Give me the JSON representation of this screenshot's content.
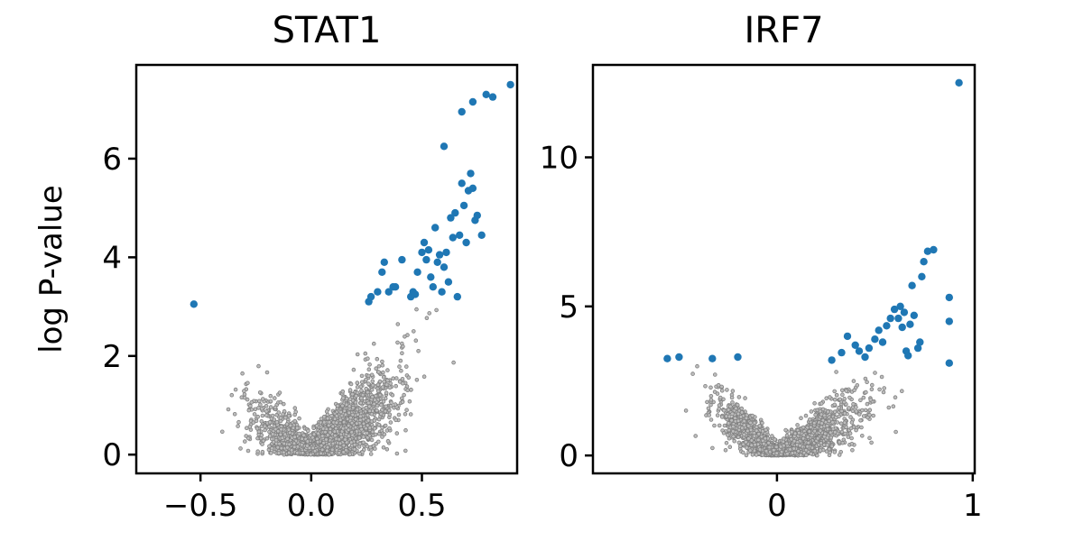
{
  "chart_data": [
    {
      "type": "scatter",
      "title": "STAT1",
      "xlabel": "",
      "ylabel": "log P-value",
      "xlim": [
        -0.79,
        0.93
      ],
      "ylim": [
        -0.38,
        7.9
      ],
      "xticks": [
        -0.5,
        0.0,
        0.5
      ],
      "xtick_labels": [
        "−0.5",
        "0.0",
        "0.5"
      ],
      "yticks": [
        0,
        2,
        4,
        6
      ],
      "ytick_labels": [
        "0",
        "2",
        "4",
        "6"
      ],
      "grid": false,
      "colors": {
        "background": "#808080",
        "significant": "#1f77b4"
      },
      "background_points": "dense grey cloud of non-significant genes, V-shaped: near 0 at x=0 rising to about 3 at x≈±0.6",
      "significant_points": [
        [
          -0.53,
          3.05
        ],
        [
          0.26,
          3.1
        ],
        [
          0.27,
          3.2
        ],
        [
          0.3,
          3.3
        ],
        [
          0.32,
          3.7
        ],
        [
          0.33,
          3.9
        ],
        [
          0.35,
          3.3
        ],
        [
          0.37,
          3.4
        ],
        [
          0.38,
          3.4
        ],
        [
          0.41,
          3.95
        ],
        [
          0.45,
          3.2
        ],
        [
          0.46,
          3.3
        ],
        [
          0.47,
          3.25
        ],
        [
          0.48,
          3.7
        ],
        [
          0.5,
          4.1
        ],
        [
          0.51,
          4.3
        ],
        [
          0.52,
          3.95
        ],
        [
          0.53,
          4.15
        ],
        [
          0.54,
          3.6
        ],
        [
          0.55,
          3.4
        ],
        [
          0.56,
          4.6
        ],
        [
          0.57,
          3.9
        ],
        [
          0.58,
          4.05
        ],
        [
          0.59,
          3.3
        ],
        [
          0.6,
          3.8
        ],
        [
          0.6,
          6.25
        ],
        [
          0.61,
          4.1
        ],
        [
          0.62,
          3.5
        ],
        [
          0.63,
          4.8
        ],
        [
          0.64,
          4.4
        ],
        [
          0.65,
          4.9
        ],
        [
          0.66,
          3.2
        ],
        [
          0.67,
          4.45
        ],
        [
          0.68,
          5.5
        ],
        [
          0.69,
          5.05
        ],
        [
          0.7,
          4.3
        ],
        [
          0.71,
          5.35
        ],
        [
          0.72,
          5.7
        ],
        [
          0.73,
          5.4
        ],
        [
          0.74,
          4.75
        ],
        [
          0.75,
          4.85
        ],
        [
          0.77,
          4.45
        ],
        [
          0.73,
          7.15
        ],
        [
          0.68,
          6.95
        ],
        [
          0.79,
          7.3
        ],
        [
          0.82,
          7.25
        ],
        [
          0.9,
          7.5
        ]
      ]
    },
    {
      "type": "scatter",
      "title": "IRF7",
      "xlabel": "",
      "ylabel": "",
      "xlim": [
        -0.94,
        1.01
      ],
      "ylim": [
        -0.6,
        13.1
      ],
      "xticks": [
        0,
        1
      ],
      "xtick_labels": [
        "0",
        "1"
      ],
      "yticks": [
        0,
        5,
        10
      ],
      "ytick_labels": [
        "0",
        "5",
        "10"
      ],
      "grid": false,
      "colors": {
        "background": "#808080",
        "significant": "#1f77b4"
      },
      "background_points": "dense grey cloud of non-significant genes, V-shaped: near 0 at x=0 rising to about 3 on both sides",
      "significant_points": [
        [
          -0.56,
          3.25
        ],
        [
          -0.5,
          3.3
        ],
        [
          -0.33,
          3.25
        ],
        [
          -0.2,
          3.3
        ],
        [
          0.28,
          3.2
        ],
        [
          0.33,
          3.45
        ],
        [
          0.36,
          4.0
        ],
        [
          0.4,
          3.7
        ],
        [
          0.42,
          3.5
        ],
        [
          0.45,
          3.3
        ],
        [
          0.47,
          3.6
        ],
        [
          0.5,
          3.9
        ],
        [
          0.52,
          4.2
        ],
        [
          0.54,
          3.8
        ],
        [
          0.56,
          4.35
        ],
        [
          0.58,
          4.6
        ],
        [
          0.6,
          4.9
        ],
        [
          0.62,
          4.6
        ],
        [
          0.63,
          5.0
        ],
        [
          0.64,
          4.3
        ],
        [
          0.65,
          4.8
        ],
        [
          0.66,
          3.5
        ],
        [
          0.67,
          3.35
        ],
        [
          0.68,
          4.4
        ],
        [
          0.69,
          5.7
        ],
        [
          0.7,
          4.7
        ],
        [
          0.72,
          3.6
        ],
        [
          0.73,
          3.8
        ],
        [
          0.74,
          6.0
        ],
        [
          0.75,
          6.5
        ],
        [
          0.77,
          6.85
        ],
        [
          0.8,
          6.9
        ],
        [
          0.88,
          5.3
        ],
        [
          0.88,
          4.5
        ],
        [
          0.88,
          3.1
        ],
        [
          0.93,
          12.5
        ]
      ]
    }
  ]
}
